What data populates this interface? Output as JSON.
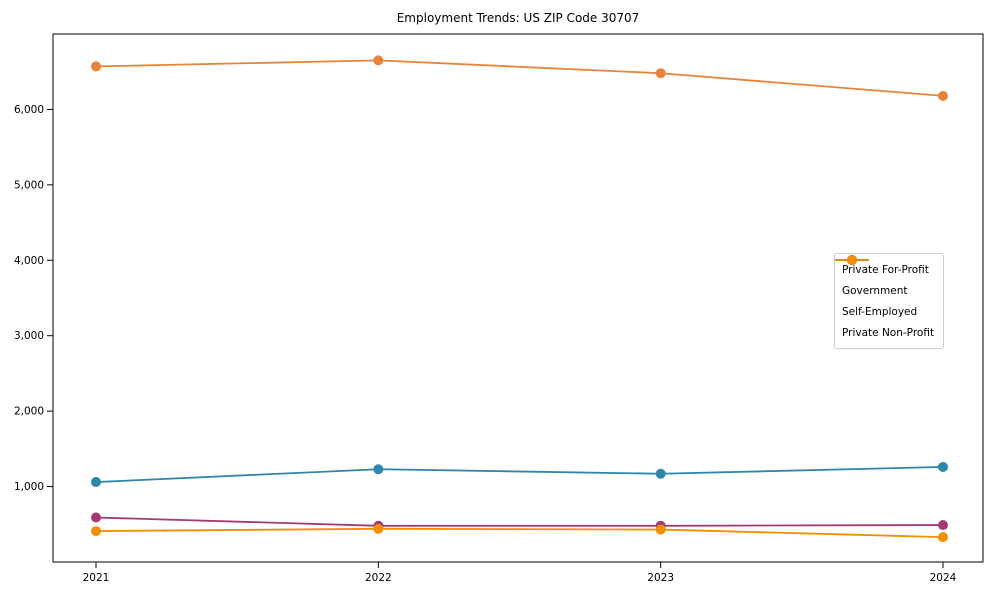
{
  "chart_data": {
    "type": "line",
    "title": "Employment Trends: US ZIP Code 30707",
    "categories": [
      "2021",
      "2022",
      "2023",
      "2024"
    ],
    "series": [
      {
        "name": "Private For-Profit",
        "color": "#E8833A",
        "values": [
          6570,
          6650,
          6480,
          6180
        ]
      },
      {
        "name": "Government",
        "color": "#2E86AB",
        "values": [
          1060,
          1230,
          1170,
          1260
        ]
      },
      {
        "name": "Self-Employed",
        "color": "#A23B72",
        "values": [
          590,
          480,
          480,
          490
        ]
      },
      {
        "name": "Private Non-Profit",
        "color": "#F18F01",
        "values": [
          410,
          440,
          430,
          330
        ]
      }
    ],
    "xlabel": "",
    "ylabel": "",
    "ylim": [
      0,
      7000
    ],
    "yticks": [
      {
        "value": 1000,
        "label": "1,000"
      },
      {
        "value": 2000,
        "label": "2,000"
      },
      {
        "value": 3000,
        "label": "3,000"
      },
      {
        "value": 4000,
        "label": "4,000"
      },
      {
        "value": 5000,
        "label": "5,000"
      },
      {
        "value": 6000,
        "label": "6,000"
      }
    ],
    "grid": false,
    "legend_position": "center-right",
    "marker": "circle",
    "axis_color": "#000000",
    "text_color": "#000000",
    "background": "#ffffff"
  }
}
